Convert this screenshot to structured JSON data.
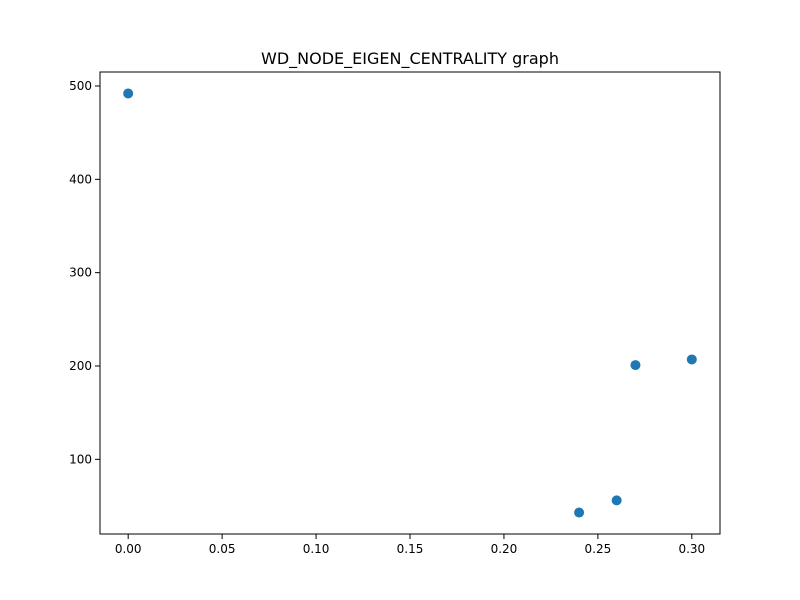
{
  "chart_data": {
    "type": "scatter",
    "title": "WD_NODE_EIGEN_CENTRALITY graph",
    "xlabel": "",
    "ylabel": "",
    "xlim": [
      -0.015,
      0.315
    ],
    "ylim": [
      20,
      515
    ],
    "xticks": [
      0.0,
      0.05,
      0.1,
      0.15,
      0.2,
      0.25,
      0.3
    ],
    "xtick_labels": [
      "0.00",
      "0.05",
      "0.10",
      "0.15",
      "0.20",
      "0.25",
      "0.30"
    ],
    "yticks": [
      100,
      200,
      300,
      400,
      500
    ],
    "ytick_labels": [
      "100",
      "200",
      "300",
      "400",
      "500"
    ],
    "grid": false,
    "color": "#1f77b4",
    "points": [
      {
        "x": 0.0,
        "y": 492
      },
      {
        "x": 0.24,
        "y": 43
      },
      {
        "x": 0.26,
        "y": 56
      },
      {
        "x": 0.27,
        "y": 201
      },
      {
        "x": 0.3,
        "y": 207
      }
    ]
  }
}
